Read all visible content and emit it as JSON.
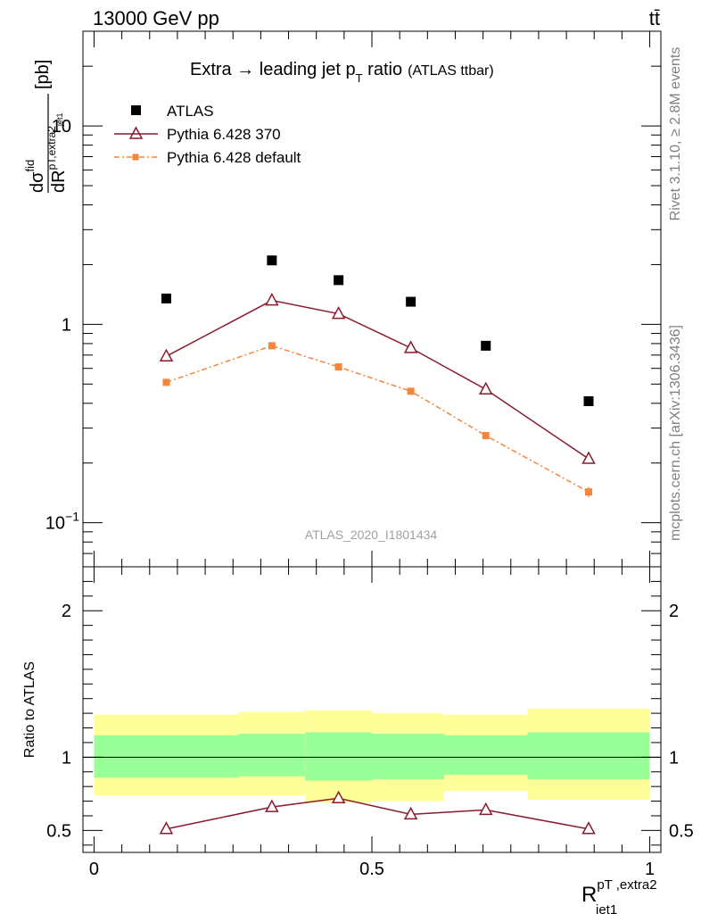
{
  "header": {
    "left": "13000 GeV pp",
    "right": "tt̄"
  },
  "side_labels": {
    "rivet": "Rivet 3.1.10, ≥ 2.8M events",
    "mcplots": "mcplots.cern.ch [arXiv:1306.3436]"
  },
  "plot": {
    "title_main": "Extra → leading jet p",
    "title_sub": "T",
    "title_tail": " ratio",
    "title_small": "(ATLAS ttbar)",
    "watermark": "ATLAS_2020_I1801434",
    "ylabel_top": "[pb]",
    "ylabel_ratio": "Ratio to ATLAS",
    "xlabel_main": "R",
    "xlabel_sup": "pT ,extra2",
    "xlabel_sub": "jet1"
  },
  "colors": {
    "data": "#000000",
    "pythia370": "#8b1a2b",
    "pythia_default": "#f5853a",
    "band_outer": "#ffff99",
    "band_inner": "#99ff99"
  },
  "chart_data": {
    "type": "scatter",
    "x_edges": [
      0.0,
      0.26,
      0.38,
      0.5,
      0.63,
      0.78,
      1.0
    ],
    "x": [
      0.13,
      0.32,
      0.44,
      0.57,
      0.705,
      0.89
    ],
    "xlim": [
      -0.02,
      1.02
    ],
    "ylim": [
      0.06,
      30
    ],
    "yscale": "log",
    "ratio_ylim": [
      0.35,
      2.3
    ],
    "x_ticks": [
      {
        "v": 0,
        "label": "0"
      },
      {
        "v": 0.5,
        "label": "0.5"
      },
      {
        "v": 1,
        "label": "1"
      }
    ],
    "y_ticks": [
      {
        "v": 0.1,
        "label": "10",
        "sup": "−1"
      },
      {
        "v": 1,
        "label": "1",
        "sup": ""
      },
      {
        "v": 10,
        "label": "10",
        "sup": ""
      }
    ],
    "ratio_ticks": [
      {
        "v": 0.5,
        "label": "0.5"
      },
      {
        "v": 1,
        "label": "1"
      },
      {
        "v": 2,
        "label": "2"
      }
    ],
    "series": [
      {
        "name": "ATLAS",
        "values": [
          1.35,
          2.1,
          1.67,
          1.3,
          0.78,
          0.41
        ],
        "errors": [
          0.0,
          0.0,
          0.0,
          0.0,
          0.0,
          0.0
        ]
      },
      {
        "name": "Pythia 6.428 370",
        "values": [
          0.69,
          1.32,
          1.13,
          0.76,
          0.47,
          0.21
        ],
        "errors": [
          0.01,
          0.015,
          0.015,
          0.01,
          0.01,
          0.007
        ]
      },
      {
        "name": "Pythia 6.428 default",
        "values": [
          0.51,
          0.78,
          0.61,
          0.46,
          0.275,
          0.143
        ],
        "errors": [
          0.01,
          0.015,
          0.012,
          0.012,
          0.012,
          0.008
        ]
      }
    ],
    "ratio_series": [
      {
        "name": "Pythia 6.428 370",
        "values": [
          0.51,
          0.66,
          0.72,
          0.61,
          0.64,
          0.51
        ],
        "errors": [
          0.01,
          0.015,
          0.02,
          0.02,
          0.025,
          0.025
        ]
      }
    ],
    "band_outer": {
      "low": [
        0.74,
        0.74,
        0.69,
        0.7,
        0.77,
        0.71
      ],
      "high": [
        1.29,
        1.31,
        1.32,
        1.3,
        1.29,
        1.33
      ]
    },
    "band_inner": {
      "low": [
        0.86,
        0.87,
        0.84,
        0.85,
        0.88,
        0.85
      ],
      "high": [
        1.15,
        1.16,
        1.17,
        1.16,
        1.15,
        1.17
      ]
    }
  }
}
